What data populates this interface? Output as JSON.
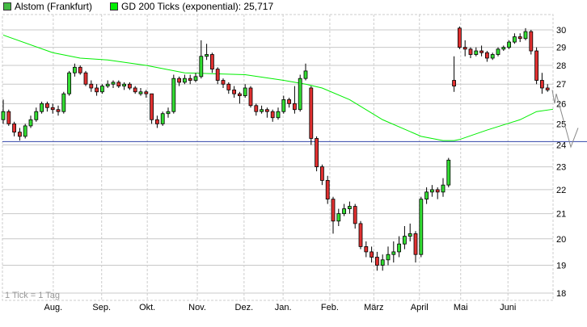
{
  "legend": {
    "stock": {
      "label": "Alstom (Frankfurt)",
      "color": "#44bb44"
    },
    "ma": {
      "label": "GD 200 Ticks (exponential): 25,717",
      "color": "#00ee00"
    }
  },
  "footnote": "1 Tick = 1 Tag",
  "chart_data": {
    "type": "candlestick",
    "yscale": "log",
    "ylim": [
      18,
      30.6
    ],
    "yticks": [
      18,
      19,
      20,
      21,
      22,
      23,
      24,
      25,
      26,
      27,
      28,
      29,
      30
    ],
    "grid": true,
    "months": [
      {
        "label": "Aug.",
        "tick": 9.1
      },
      {
        "label": "Sep.",
        "tick": 17.9
      },
      {
        "label": "Okt.",
        "tick": 26.2
      },
      {
        "label": "Nov.",
        "tick": 35.3
      },
      {
        "label": "Dez.",
        "tick": 43.8
      },
      {
        "label": "Jan.",
        "tick": 50.9
      },
      {
        "label": "Feb.",
        "tick": 59.4
      },
      {
        "label": "März",
        "tick": 67.4
      },
      {
        "label": "April",
        "tick": 75.7
      },
      {
        "label": "Mai",
        "tick": 83.2
      },
      {
        "label": "Juni",
        "tick": 91.8
      }
    ],
    "colors": {
      "up": "#33dd33",
      "down": "#e03030",
      "ma": "#00ee00",
      "hline": "#3344aa",
      "projection": "#888888"
    },
    "hline": 24.15,
    "candles_ohlc": [
      [
        25.2,
        26.2,
        25.0,
        25.6
      ],
      [
        25.6,
        25.7,
        24.9,
        25.0
      ],
      [
        25.0,
        25.1,
        24.4,
        24.6
      ],
      [
        24.6,
        24.8,
        24.2,
        24.4
      ],
      [
        24.4,
        25.0,
        24.3,
        24.9
      ],
      [
        24.9,
        25.4,
        24.8,
        25.2
      ],
      [
        25.2,
        25.8,
        25.1,
        25.6
      ],
      [
        25.6,
        26.1,
        25.5,
        26.0
      ],
      [
        26.0,
        26.1,
        25.6,
        25.8
      ],
      [
        25.8,
        26.0,
        25.5,
        25.7
      ],
      [
        25.7,
        25.9,
        25.4,
        25.6
      ],
      [
        25.6,
        26.6,
        25.5,
        26.5
      ],
      [
        26.5,
        27.7,
        26.4,
        27.6
      ],
      [
        27.6,
        28.1,
        27.4,
        27.9
      ],
      [
        27.9,
        28.0,
        27.5,
        27.6
      ],
      [
        27.6,
        27.7,
        26.9,
        27.0
      ],
      [
        27.0,
        27.2,
        26.6,
        26.8
      ],
      [
        26.8,
        27.0,
        26.4,
        26.6
      ],
      [
        26.6,
        27.0,
        26.5,
        26.9
      ],
      [
        26.9,
        27.2,
        26.8,
        27.0
      ],
      [
        27.0,
        27.2,
        26.8,
        27.1
      ],
      [
        27.1,
        27.2,
        26.8,
        26.9
      ],
      [
        26.9,
        27.1,
        26.7,
        27.0
      ],
      [
        27.0,
        27.1,
        26.7,
        26.8
      ],
      [
        26.8,
        26.9,
        26.5,
        26.6
      ],
      [
        26.5,
        26.8,
        26.4,
        26.6
      ],
      [
        26.6,
        26.7,
        26.3,
        26.5
      ],
      [
        26.5,
        26.5,
        25.0,
        25.2
      ],
      [
        25.2,
        25.4,
        24.8,
        25.0
      ],
      [
        25.0,
        25.6,
        24.9,
        25.5
      ],
      [
        25.5,
        25.8,
        25.3,
        25.6
      ],
      [
        25.6,
        27.5,
        25.5,
        27.3
      ],
      [
        27.3,
        27.4,
        26.9,
        27.1
      ],
      [
        27.1,
        27.5,
        27.0,
        27.3
      ],
      [
        27.3,
        27.5,
        27.0,
        27.2
      ],
      [
        27.2,
        27.6,
        27.1,
        27.4
      ],
      [
        27.4,
        29.4,
        27.3,
        28.5
      ],
      [
        28.5,
        29.2,
        28.3,
        28.6
      ],
      [
        28.6,
        28.7,
        27.6,
        27.8
      ],
      [
        27.8,
        27.9,
        27.0,
        27.2
      ],
      [
        27.2,
        27.3,
        26.8,
        27.0
      ],
      [
        27.0,
        27.1,
        26.5,
        26.7
      ],
      [
        26.7,
        26.9,
        26.3,
        26.5
      ],
      [
        26.5,
        26.6,
        26.0,
        26.4
      ],
      [
        26.4,
        27.0,
        26.3,
        26.8
      ],
      [
        26.8,
        26.9,
        25.8,
        25.9
      ],
      [
        25.9,
        26.0,
        25.4,
        25.6
      ],
      [
        25.6,
        25.9,
        25.5,
        25.7
      ],
      [
        25.7,
        25.8,
        25.3,
        25.6
      ],
      [
        25.6,
        25.7,
        25.1,
        25.3
      ],
      [
        25.3,
        25.8,
        25.2,
        25.6
      ],
      [
        25.6,
        26.4,
        25.5,
        26.2
      ],
      [
        26.2,
        26.3,
        25.8,
        26.0
      ],
      [
        26.0,
        26.9,
        25.5,
        25.7
      ],
      [
        25.7,
        27.5,
        25.6,
        27.3
      ],
      [
        27.3,
        28.1,
        27.2,
        27.7
      ],
      [
        26.8,
        26.9,
        24.0,
        24.3
      ],
      [
        24.3,
        24.4,
        22.8,
        23.0
      ],
      [
        23.0,
        23.1,
        22.2,
        22.4
      ],
      [
        22.4,
        22.6,
        21.4,
        21.6
      ],
      [
        21.6,
        21.7,
        20.2,
        20.7
      ],
      [
        20.7,
        21.2,
        20.5,
        21.0
      ],
      [
        21.0,
        21.4,
        20.9,
        21.2
      ],
      [
        21.2,
        21.5,
        21.0,
        21.3
      ],
      [
        21.3,
        21.4,
        20.4,
        20.6
      ],
      [
        20.6,
        20.7,
        19.6,
        19.7
      ],
      [
        19.7,
        19.9,
        19.3,
        19.5
      ],
      [
        19.5,
        19.7,
        19.1,
        19.3
      ],
      [
        19.3,
        19.5,
        18.8,
        19.0
      ],
      [
        19.0,
        19.4,
        18.8,
        19.2
      ],
      [
        19.2,
        19.7,
        19.0,
        19.4
      ],
      [
        19.4,
        19.9,
        19.1,
        19.5
      ],
      [
        19.5,
        20.1,
        19.3,
        19.8
      ],
      [
        19.8,
        20.5,
        19.6,
        20.1
      ],
      [
        20.1,
        20.6,
        19.9,
        20.2
      ],
      [
        20.2,
        20.3,
        19.1,
        19.4
      ],
      [
        19.4,
        21.7,
        19.3,
        21.6
      ],
      [
        21.6,
        22.1,
        21.4,
        21.9
      ],
      [
        21.9,
        22.2,
        21.7,
        22.0
      ],
      [
        22.0,
        22.1,
        21.6,
        21.9
      ],
      [
        21.9,
        22.5,
        21.7,
        22.2
      ],
      [
        22.2,
        23.4,
        22.1,
        23.3
      ],
      [
        27.2,
        28.5,
        26.6,
        26.9
      ],
      [
        30.1,
        30.2,
        28.9,
        29.0
      ],
      [
        29.0,
        29.4,
        28.5,
        28.9
      ],
      [
        28.9,
        29.0,
        28.4,
        28.6
      ],
      [
        28.6,
        29.0,
        28.5,
        28.8
      ],
      [
        28.8,
        29.1,
        28.5,
        28.7
      ],
      [
        28.7,
        28.8,
        28.2,
        28.4
      ],
      [
        28.4,
        28.7,
        28.3,
        28.6
      ],
      [
        28.6,
        29.0,
        28.5,
        28.9
      ],
      [
        28.9,
        29.1,
        28.8,
        29.0
      ],
      [
        29.0,
        29.4,
        28.9,
        29.3
      ],
      [
        29.3,
        29.8,
        29.2,
        29.6
      ],
      [
        29.6,
        29.8,
        29.3,
        29.5
      ],
      [
        29.5,
        30.1,
        29.4,
        29.9
      ],
      [
        29.9,
        30.0,
        28.6,
        28.8
      ],
      [
        28.8,
        29.0,
        27.0,
        27.2
      ],
      [
        27.2,
        27.6,
        26.5,
        26.8
      ],
      [
        26.8,
        27.0,
        26.6,
        26.7
      ]
    ],
    "ma_points": [
      [
        0,
        29.7
      ],
      [
        9,
        28.7
      ],
      [
        14,
        28.4
      ],
      [
        19,
        28.3
      ],
      [
        26,
        28.0
      ],
      [
        33,
        27.6
      ],
      [
        44,
        27.5
      ],
      [
        51,
        27.2
      ],
      [
        55,
        27.0
      ],
      [
        58,
        26.8
      ],
      [
        63,
        26.2
      ],
      [
        69,
        25.2
      ],
      [
        76,
        24.4
      ],
      [
        80,
        24.2
      ],
      [
        82,
        24.2
      ],
      [
        83,
        24.25
      ],
      [
        88,
        24.7
      ],
      [
        94,
        25.2
      ],
      [
        97,
        25.6
      ],
      [
        100,
        25.717
      ]
    ],
    "projection": [
      26.7,
      26.0,
      26.5,
      23.9,
      24.8
    ]
  }
}
